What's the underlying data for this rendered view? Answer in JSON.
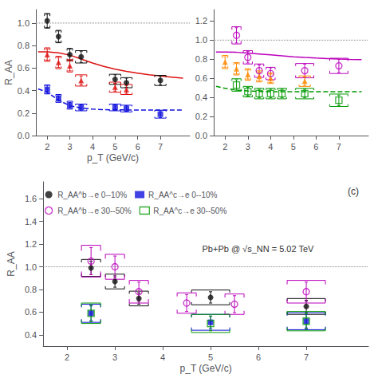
{
  "chart_data": [
    {
      "type": "scatter",
      "ylabel": "R_AA",
      "xlabel": "p_T (GeV/c)",
      "xlim": [
        1.5,
        8.3
      ],
      "xticks": [
        2,
        3,
        4,
        5,
        6,
        7
      ],
      "ylim": [
        0,
        1.12
      ],
      "yticks": [
        {
          "value": 0,
          "label": "0.0"
        },
        0.2,
        0.4,
        0.6,
        0.8,
        {
          "value": 1.0,
          "label": "1.0"
        }
      ],
      "grid": false,
      "series": [
        {
          "type": "hline",
          "color": "#888888",
          "line_style": "dotted",
          "values": [
            1.0
          ]
        },
        {
          "type": "line",
          "color": "#DD1111",
          "line_style": "solid",
          "x": [
            1.6,
            2.0,
            2.5,
            3.0,
            3.5,
            4.0,
            4.5,
            5.0,
            5.5,
            6.0,
            6.5,
            7.0,
            7.5,
            8.0
          ],
          "values": [
            0.745,
            0.745,
            0.735,
            0.715,
            0.68,
            0.645,
            0.615,
            0.59,
            0.57,
            0.555,
            0.54,
            0.53,
            0.52,
            0.51
          ]
        },
        {
          "type": "line",
          "color": "#1111DD",
          "line_style": "dashed",
          "x": [
            1.6,
            2.0,
            2.5,
            3.0,
            3.5,
            4.0,
            4.5,
            5.0,
            5.5,
            6.0,
            6.5,
            7.0,
            7.5,
            8.0
          ],
          "values": [
            0.415,
            0.385,
            0.315,
            0.265,
            0.245,
            0.235,
            0.23,
            0.228,
            0.228,
            0.227,
            0.227,
            0.227,
            0.227,
            0.227
          ]
        },
        {
          "type": "scatter",
          "color": "#111111",
          "marker": "circle",
          "x": [
            2.0,
            2.5,
            3.0,
            3.5,
            5.0,
            5.5,
            7.0
          ],
          "values": [
            1.02,
            0.88,
            0.72,
            0.7,
            0.5,
            0.47,
            0.49
          ],
          "yerr": [
            0.06,
            0.05,
            0.05,
            0.05,
            0.04,
            0.04,
            0.04
          ],
          "sys_xerr": [
            0.12,
            0.12,
            0.12,
            0.25,
            0.25,
            0.25,
            0.25
          ],
          "sys_yerr": [
            0.065,
            0.055,
            0.055,
            0.055,
            0.045,
            0.045,
            0.045
          ]
        },
        {
          "type": "scatter",
          "color": "#1111DD",
          "marker": "square",
          "x": [
            2.0,
            2.5,
            3.0,
            3.5,
            5.0,
            5.5,
            7.0
          ],
          "values": [
            0.41,
            0.33,
            0.27,
            0.25,
            0.25,
            0.24,
            0.19
          ],
          "yerr": [
            0.035,
            0.025,
            0.025,
            0.025,
            0.025,
            0.025,
            0.03
          ],
          "sys_xerr": [
            0.12,
            0.12,
            0.12,
            0.25,
            0.25,
            0.25,
            0.25
          ],
          "sys_yerr": [
            0.04,
            0.035,
            0.035,
            0.03,
            0.03,
            0.03,
            0.035
          ]
        },
        {
          "type": "scatter",
          "color": "#DD1111",
          "marker": "triangle",
          "x": [
            2.0,
            2.5,
            3.0,
            3.5,
            5.0,
            5.5
          ],
          "values": [
            0.72,
            0.65,
            0.62,
            0.49,
            0.43,
            0.41
          ],
          "yerr": [
            0.05,
            0.045,
            0.045,
            0.04,
            0.035,
            0.035
          ],
          "sys_xerr": [
            0.12,
            0.12,
            0.12,
            0.25,
            0.25,
            0.25
          ],
          "sys_yerr": [
            0.06,
            0.055,
            0.055,
            0.05,
            0.045,
            0.045
          ]
        }
      ]
    },
    {
      "type": "scatter",
      "xlim": [
        1.5,
        8.3
      ],
      "xticks": [
        2,
        3,
        4,
        5,
        6,
        7
      ],
      "ylim": [
        0,
        1.32
      ],
      "yticks": [
        {
          "value": 0,
          "label": "0.0"
        },
        0.2,
        0.4,
        0.6,
        0.8,
        {
          "value": 1.0,
          "label": "1.0"
        },
        1.2
      ],
      "grid": false,
      "series": [
        {
          "type": "hline",
          "color": "#888888",
          "line_style": "dotted",
          "values": [
            1.0
          ]
        },
        {
          "type": "line",
          "color": "#BB00BB",
          "line_style": "solid",
          "x": [
            1.6,
            2.0,
            2.5,
            3.0,
            3.5,
            4.0,
            4.5,
            5.0,
            5.5,
            6.0,
            6.5,
            7.0,
            7.5,
            8.0
          ],
          "values": [
            0.875,
            0.875,
            0.872,
            0.865,
            0.855,
            0.845,
            0.835,
            0.825,
            0.818,
            0.812,
            0.807,
            0.802,
            0.798,
            0.795
          ]
        },
        {
          "type": "line",
          "color": "#009900",
          "line_style": "dashed",
          "x": [
            1.6,
            2.0,
            2.5,
            3.0,
            3.5,
            4.0,
            4.5,
            5.0,
            5.5,
            6.0,
            6.5,
            7.0,
            7.5,
            8.0
          ],
          "values": [
            0.515,
            0.495,
            0.477,
            0.467,
            0.462,
            0.46,
            0.46,
            0.46,
            0.46,
            0.46,
            0.46,
            0.46,
            0.46,
            0.46
          ]
        },
        {
          "type": "scatter",
          "color": "#BB00BB",
          "marker": "open_circle",
          "x": [
            2.5,
            3.0,
            3.5,
            4.0,
            5.5,
            7.0
          ],
          "values": [
            1.05,
            0.82,
            0.68,
            0.65,
            0.68,
            0.73
          ],
          "yerr": [
            0.08,
            0.06,
            0.06,
            0.06,
            0.07,
            0.07
          ],
          "sys_xerr": [
            0.2,
            0.2,
            0.2,
            0.2,
            0.4,
            0.4
          ],
          "sys_yerr": [
            0.09,
            0.07,
            0.07,
            0.065,
            0.075,
            0.08
          ]
        },
        {
          "type": "scatter",
          "color": "#009900",
          "marker": "open_square",
          "x": [
            2.5,
            3.0,
            3.5,
            4.0,
            4.5,
            5.5,
            7.0
          ],
          "values": [
            0.53,
            0.46,
            0.44,
            0.44,
            0.44,
            0.44,
            0.37
          ],
          "yerr": [
            0.055,
            0.045,
            0.045,
            0.045,
            0.045,
            0.045,
            0.055
          ],
          "sys_xerr": [
            0.2,
            0.2,
            0.2,
            0.2,
            0.2,
            0.4,
            0.4
          ],
          "sys_yerr": [
            0.065,
            0.055,
            0.055,
            0.055,
            0.055,
            0.055,
            0.065
          ]
        },
        {
          "type": "scatter",
          "color": "#FF8800",
          "marker": "triangle",
          "x": [
            2.0,
            2.5,
            3.0,
            3.5,
            4.0,
            5.5
          ],
          "values": [
            0.77,
            0.7,
            0.64,
            0.62,
            0.6,
            0.57
          ],
          "yerr": [
            0.055,
            0.055,
            0.048,
            0.045,
            0.045,
            0.045
          ],
          "sys_xerr": [
            0.12,
            0.12,
            0.12,
            0.12,
            0.12,
            0.25
          ],
          "sys_yerr": [
            0.07,
            0.065,
            0.06,
            0.058,
            0.055,
            0.055
          ]
        }
      ]
    },
    {
      "type": "scatter",
      "title": "(c)",
      "annotation": "Pb+Pb @ √s_NN = 5.02 TeV",
      "ylabel": "R_AA",
      "xlabel": "p_T (GeV/c)",
      "xlim": [
        1.5,
        8.3
      ],
      "xticks": [
        2,
        3,
        4,
        5,
        6,
        7
      ],
      "ylim": [
        0.3,
        1.75
      ],
      "yticks": [
        0.4,
        0.6,
        0.8,
        {
          "value": 1.0,
          "label": "1.0"
        },
        1.2,
        1.4,
        1.6
      ],
      "grid": false,
      "legend": "upper left",
      "series": [
        {
          "type": "hline",
          "color": "#888888",
          "line_style": "dotted",
          "values": [
            1.0
          ]
        },
        {
          "type": "scatter",
          "name": "R_AA^b→e 0--10%",
          "color": "#111111",
          "marker": "circle",
          "x": [
            2.5,
            3.0,
            3.5,
            5.0,
            7.0
          ],
          "values": [
            0.99,
            0.87,
            0.72,
            0.73,
            0.65
          ],
          "yerr": [
            0.06,
            0.05,
            0.05,
            0.05,
            0.055
          ],
          "sys_xerr": [
            0.2,
            0.2,
            0.2,
            0.4,
            0.4
          ],
          "sys_yerr": [
            0.075,
            0.065,
            0.065,
            0.065,
            0.07
          ]
        },
        {
          "type": "scatter",
          "name": "R_AA^c→e 0--10%",
          "color": "#1111DD",
          "marker": "square",
          "x": [
            2.5,
            5.0,
            7.0
          ],
          "values": [
            0.59,
            0.51,
            0.52
          ],
          "yerr": [
            0.065,
            0.055,
            0.06
          ],
          "sys_xerr": [
            0.2,
            0.4,
            0.4
          ],
          "sys_yerr": [
            0.08,
            0.07,
            0.075
          ]
        },
        {
          "type": "scatter",
          "name": "R_AA^b→e 30--50%",
          "color": "#BB00BB",
          "marker": "open_circle",
          "x": [
            2.5,
            3.0,
            3.5,
            4.5,
            5.5,
            7.0
          ],
          "values": [
            1.05,
            1.0,
            0.78,
            0.68,
            0.67,
            0.78
          ],
          "yerr": [
            0.12,
            0.095,
            0.085,
            0.075,
            0.075,
            0.085
          ],
          "sys_xerr": [
            0.2,
            0.2,
            0.2,
            0.2,
            0.2,
            0.4
          ],
          "sys_yerr": [
            0.14,
            0.11,
            0.1,
            0.09,
            0.09,
            0.1
          ]
        },
        {
          "type": "scatter",
          "name": "R_AA^c→e 30--50%",
          "color": "#009900",
          "marker": "open_square",
          "x": [
            2.5,
            5.0,
            7.0
          ],
          "values": [
            0.59,
            0.5,
            0.52
          ],
          "yerr": [
            0.075,
            0.065,
            0.07
          ],
          "sys_xerr": [
            0.2,
            0.4,
            0.4
          ],
          "sys_yerr": [
            0.09,
            0.08,
            0.085
          ]
        }
      ]
    }
  ]
}
